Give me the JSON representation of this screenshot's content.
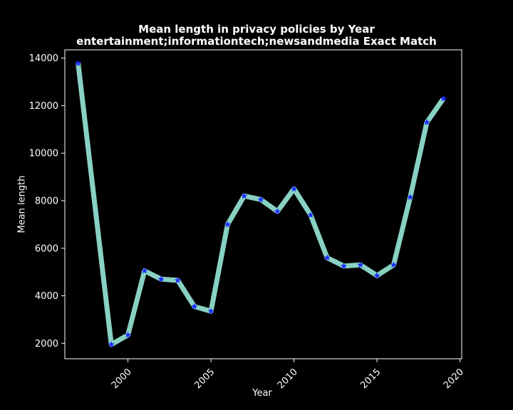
{
  "chart_data": {
    "type": "line",
    "title": "Mean length in privacy policies by Year",
    "subtitle": "entertainment;informationtech;newsandmedia Exact Match",
    "xlabel": "Year",
    "ylabel": "Mean length",
    "xlim": [
      1996.2,
      2020.1
    ],
    "ylim": [
      1350,
      14350
    ],
    "xticks": [
      2000,
      2005,
      2010,
      2015,
      2020
    ],
    "yticks": [
      2000,
      4000,
      6000,
      8000,
      10000,
      12000,
      14000
    ],
    "grid": false,
    "series": [
      {
        "x": [
          1997,
          1999,
          2000,
          2001,
          2002,
          2003,
          2004,
          2005,
          2006,
          2007,
          2008,
          2009,
          2010,
          2011,
          2012,
          2013,
          2014,
          2015,
          2016,
          2017,
          2018,
          2019
        ],
        "y": [
          13780,
          1950,
          2350,
          5050,
          4700,
          4650,
          3550,
          3350,
          7000,
          8200,
          8050,
          7550,
          8500,
          7400,
          5600,
          5250,
          5300,
          4850,
          5300,
          8150,
          11300,
          12300
        ],
        "line_color": "#88d1c3",
        "marker": "star",
        "marker_color": "#1f2bff"
      }
    ]
  }
}
